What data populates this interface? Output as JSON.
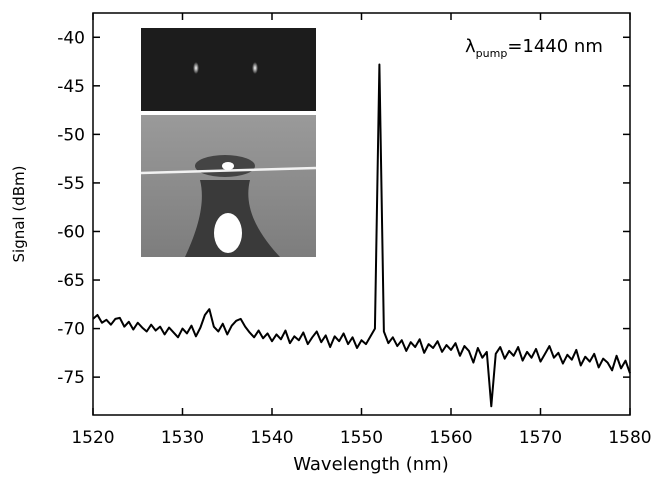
{
  "chart_data": {
    "type": "line",
    "xlabel": "Wavelength (nm)",
    "ylabel": "Signal (dBm)",
    "annotation": {
      "symbol": "λ",
      "subscript": "pump",
      "text": "=1440 nm"
    },
    "xlim": [
      1520,
      1580
    ],
    "ylim": [
      -78.9,
      -37.5
    ],
    "xticks": [
      1520,
      1530,
      1540,
      1550,
      1560,
      1570,
      1580
    ],
    "yticks": [
      -75,
      -70,
      -65,
      -60,
      -55,
      -50,
      -45,
      -40
    ],
    "color": "#000000",
    "x": [
      1520,
      1520.5,
      1521,
      1521.5,
      1522,
      1522.5,
      1523,
      1523.5,
      1524,
      1524.5,
      1525,
      1525.5,
      1526,
      1526.5,
      1527,
      1527.5,
      1528,
      1528.5,
      1529,
      1529.5,
      1530,
      1530.5,
      1531,
      1531.5,
      1532,
      1532.5,
      1533,
      1533.5,
      1534,
      1534.5,
      1535,
      1535.5,
      1536,
      1536.5,
      1537,
      1537.5,
      1538,
      1538.5,
      1539,
      1539.5,
      1540,
      1540.5,
      1541,
      1541.5,
      1542,
      1542.5,
      1543,
      1543.5,
      1544,
      1544.5,
      1545,
      1545.5,
      1546,
      1546.5,
      1547,
      1547.5,
      1548,
      1548.5,
      1549,
      1549.5,
      1550,
      1550.5,
      1551,
      1551.5,
      1552,
      1552.5,
      1553,
      1553.5,
      1554,
      1554.5,
      1555,
      1555.5,
      1556,
      1556.5,
      1557,
      1557.5,
      1558,
      1558.5,
      1559,
      1559.5,
      1560,
      1560.5,
      1561,
      1561.5,
      1562,
      1562.5,
      1563,
      1563.5,
      1564,
      1564.5,
      1565,
      1565.5,
      1566,
      1566.5,
      1567,
      1567.5,
      1568,
      1568.5,
      1569,
      1569.5,
      1570,
      1570.5,
      1571,
      1571.5,
      1572,
      1572.5,
      1573,
      1573.5,
      1574,
      1574.5,
      1575,
      1575.5,
      1576,
      1576.5,
      1577,
      1577.5,
      1578,
      1578.5,
      1579,
      1579.5,
      1580
    ],
    "values": [
      -69.0,
      -68.6,
      -69.4,
      -69.1,
      -69.6,
      -69.0,
      -68.9,
      -69.8,
      -69.3,
      -70.1,
      -69.4,
      -69.9,
      -70.3,
      -69.6,
      -70.2,
      -69.8,
      -70.6,
      -69.9,
      -70.4,
      -70.9,
      -70.0,
      -70.5,
      -69.7,
      -70.8,
      -69.9,
      -68.6,
      -68.0,
      -69.8,
      -70.3,
      -69.5,
      -70.6,
      -69.7,
      -69.2,
      -69.0,
      -69.8,
      -70.4,
      -70.9,
      -70.2,
      -71.0,
      -70.5,
      -71.3,
      -70.6,
      -71.1,
      -70.2,
      -71.5,
      -70.8,
      -71.2,
      -70.4,
      -71.6,
      -70.9,
      -70.3,
      -71.4,
      -70.7,
      -71.9,
      -70.8,
      -71.3,
      -70.5,
      -71.6,
      -70.9,
      -72.0,
      -71.2,
      -71.6,
      -70.8,
      -70.0,
      -42.8,
      -70.3,
      -71.5,
      -70.9,
      -71.8,
      -71.2,
      -72.3,
      -71.4,
      -71.9,
      -71.1,
      -72.5,
      -71.6,
      -72.0,
      -71.3,
      -72.4,
      -71.7,
      -72.2,
      -71.5,
      -72.8,
      -71.8,
      -72.3,
      -73.5,
      -72.0,
      -73.0,
      -72.4,
      -78.0,
      -72.6,
      -71.9,
      -73.1,
      -72.3,
      -72.8,
      -71.9,
      -73.3,
      -72.4,
      -73.0,
      -72.1,
      -73.4,
      -72.6,
      -71.8,
      -73.0,
      -72.5,
      -73.6,
      -72.7,
      -73.2,
      -72.2,
      -73.8,
      -72.9,
      -73.4,
      -72.6,
      -74.0,
      -73.1,
      -73.5,
      -74.3,
      -72.8,
      -74.1,
      -73.3,
      -74.6
    ]
  }
}
